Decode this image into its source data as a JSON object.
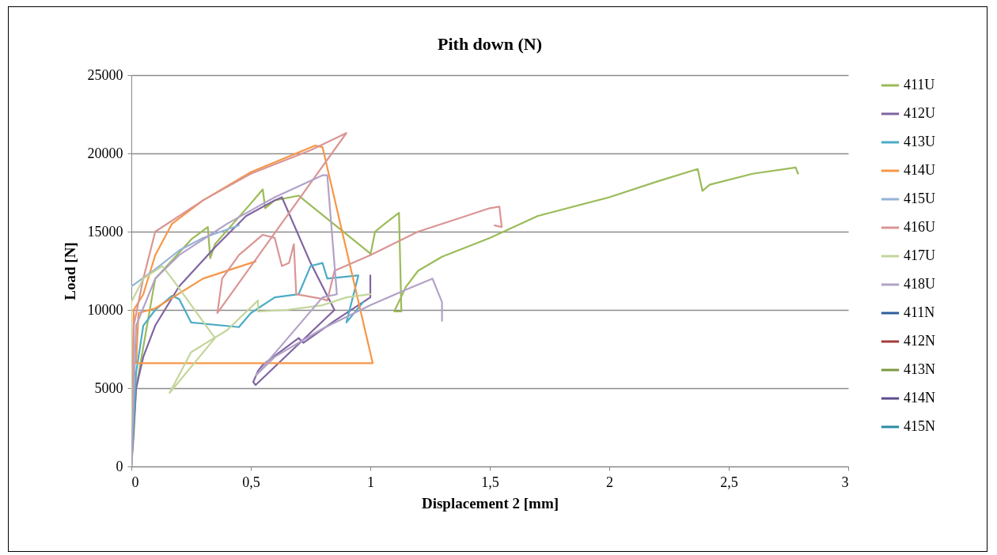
{
  "chart_data": {
    "type": "line",
    "title": "Pith down (N)",
    "xlabel": "Displacement 2 [mm]",
    "ylabel": "Load [N]",
    "xlim": [
      0,
      3
    ],
    "xticks": [
      0,
      {
        "value": 0.5,
        "label": "0,5"
      },
      1,
      {
        "value": 1.5,
        "label": "1,5"
      },
      2,
      {
        "value": 2.5,
        "label": "2,5"
      },
      3
    ],
    "ylim": [
      0,
      25000
    ],
    "yticks": [
      0,
      5000,
      10000,
      15000,
      20000,
      25000
    ],
    "grid": "y",
    "legend": "right",
    "series": [
      {
        "name": "411U",
        "color": "#9bbb59",
        "x": [
          0,
          0.01,
          0.02,
          0.1,
          0.25,
          0.32,
          0.33,
          0.35,
          0.5,
          0.55,
          0.56,
          0.6,
          0.7,
          1.0,
          1.0,
          1.02,
          1.06,
          1.12,
          1.13,
          1.1,
          1.15,
          1.2,
          1.3,
          1.5,
          1.7,
          2.0,
          2.2,
          2.37,
          2.39,
          2.42,
          2.6,
          2.78,
          2.79
        ],
        "values": [
          0,
          2000,
          5000,
          12000,
          14500,
          15300,
          13300,
          14200,
          16800,
          17700,
          16500,
          17000,
          17300,
          13600,
          13500,
          15000,
          15500,
          16200,
          9900,
          9900,
          11500,
          12500,
          13400,
          14600,
          16000,
          17200,
          18200,
          19000,
          17600,
          18000,
          18700,
          19100,
          18700
        ]
      },
      {
        "name": "412U",
        "color": "#8064a2",
        "x": [
          0,
          0.02,
          0.05,
          0.1,
          0.2,
          0.35,
          0.48,
          0.6,
          0.63,
          0.75,
          0.85,
          0.52,
          0.51,
          0.53,
          0.55,
          0.7,
          0.72,
          0.85,
          1.0,
          1.0
        ],
        "values": [
          0,
          5000,
          7000,
          9000,
          11500,
          14000,
          16000,
          17000,
          17200,
          13000,
          10000,
          5200,
          5400,
          6100,
          6500,
          8200,
          7900,
          9300,
          10800,
          12200
        ]
      },
      {
        "name": "413U",
        "color": "#4bacc6",
        "x": [
          0,
          0.02,
          0.05,
          0.1,
          0.17,
          0.2,
          0.25,
          0.45,
          0.5,
          0.6,
          0.7,
          0.75,
          0.8,
          0.82,
          0.95,
          0.9,
          0.97
        ],
        "values": [
          0,
          6000,
          9000,
          10000,
          10900,
          10700,
          9200,
          8900,
          9800,
          10800,
          11000,
          12800,
          13000,
          12000,
          12200,
          9200,
          10500
        ]
      },
      {
        "name": "414U",
        "color": "#f79646",
        "x": [
          0,
          0.01,
          0.05,
          0.1,
          0.17,
          0.3,
          0.5,
          0.77,
          0.8,
          1.01,
          0.02,
          0.03,
          0.1,
          0.3,
          0.52
        ],
        "values": [
          0,
          10000,
          11000,
          13500,
          15500,
          17000,
          18800,
          20500,
          20400,
          6600,
          6600,
          9800,
          10100,
          12000,
          13100
        ]
      },
      {
        "name": "415U",
        "color": "#95b3d7",
        "x": [
          0,
          0.1,
          0.2,
          0.3,
          0.45
        ],
        "values": [
          11500,
          12600,
          13800,
          14600,
          15400
        ]
      },
      {
        "name": "416U",
        "color": "#d99694",
        "x": [
          0,
          0.01,
          0.05,
          0.1,
          0.3,
          0.5,
          0.75,
          0.9,
          0.36,
          0.38,
          0.45,
          0.55,
          0.6,
          0.63,
          0.66,
          0.68,
          0.69,
          0.8,
          0.82,
          0.85,
          1.0,
          1.2,
          1.4,
          1.5,
          1.54,
          1.55,
          1.52
        ],
        "values": [
          0,
          9000,
          12000,
          15000,
          17000,
          18700,
          20200,
          21300,
          9800,
          12000,
          13500,
          14800,
          14600,
          12800,
          13000,
          14200,
          11000,
          10700,
          10600,
          12500,
          13500,
          15000,
          16000,
          16500,
          16600,
          15300,
          15400
        ]
      },
      {
        "name": "417U",
        "color": "#c3d69b",
        "x": [
          0,
          0,
          0.05,
          0.13,
          0.18,
          0.35,
          0.16,
          0.25,
          0.4,
          0.53,
          0.53,
          0.65,
          0.8,
          0.9,
          1.0
        ],
        "values": [
          0,
          10500,
          12000,
          12800,
          11800,
          8200,
          4700,
          7300,
          8700,
          10600,
          9900,
          10000,
          10300,
          10800,
          11000
        ]
      },
      {
        "name": "418U",
        "color": "#b2a2c7",
        "x": [
          0,
          0.02,
          0.1,
          0.2,
          0.4,
          0.6,
          0.8,
          0.82,
          0.86,
          0.8,
          0.52,
          0.6,
          0.8,
          1.0,
          1.15,
          1.26,
          1.3,
          1.3
        ],
        "values": [
          0,
          9000,
          12000,
          13500,
          15500,
          17200,
          18600,
          18600,
          11000,
          10800,
          5800,
          7000,
          8800,
          10300,
          11300,
          12000,
          10500,
          9300
        ]
      },
      {
        "name": "411N",
        "color": "#2e5e9c"
      },
      {
        "name": "412N",
        "color": "#a33b3a"
      },
      {
        "name": "413N",
        "color": "#7a9a3e"
      },
      {
        "name": "414N",
        "color": "#5f4b8b"
      },
      {
        "name": "415N",
        "color": "#2a8ca6"
      }
    ]
  }
}
